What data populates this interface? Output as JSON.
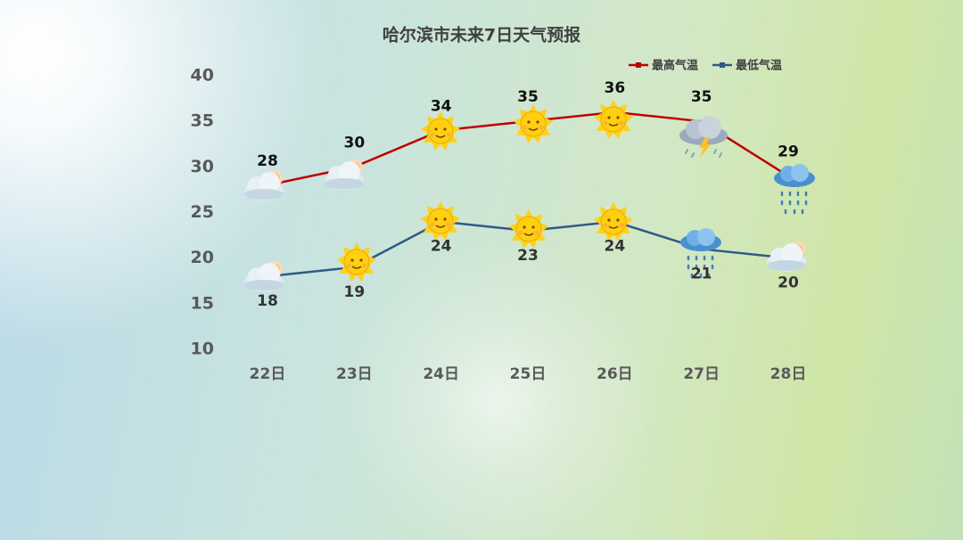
{
  "chart_data": {
    "type": "line",
    "title": "哈尔滨市未来7日天气预报",
    "categories": [
      "22日",
      "23日",
      "24日",
      "25日",
      "26日",
      "27日",
      "28日"
    ],
    "series": [
      {
        "name": "最高气温",
        "color": "#c00000",
        "values": [
          28,
          30,
          34,
          35,
          36,
          35,
          29
        ]
      },
      {
        "name": "最低气温",
        "color": "#2e5a87",
        "values": [
          18,
          19,
          24,
          23,
          24,
          21,
          20
        ]
      }
    ],
    "ylim": [
      10,
      40
    ],
    "yticks": [
      10,
      15,
      20,
      25,
      30,
      35,
      40
    ],
    "grid": false,
    "legend": "top-right"
  }
}
